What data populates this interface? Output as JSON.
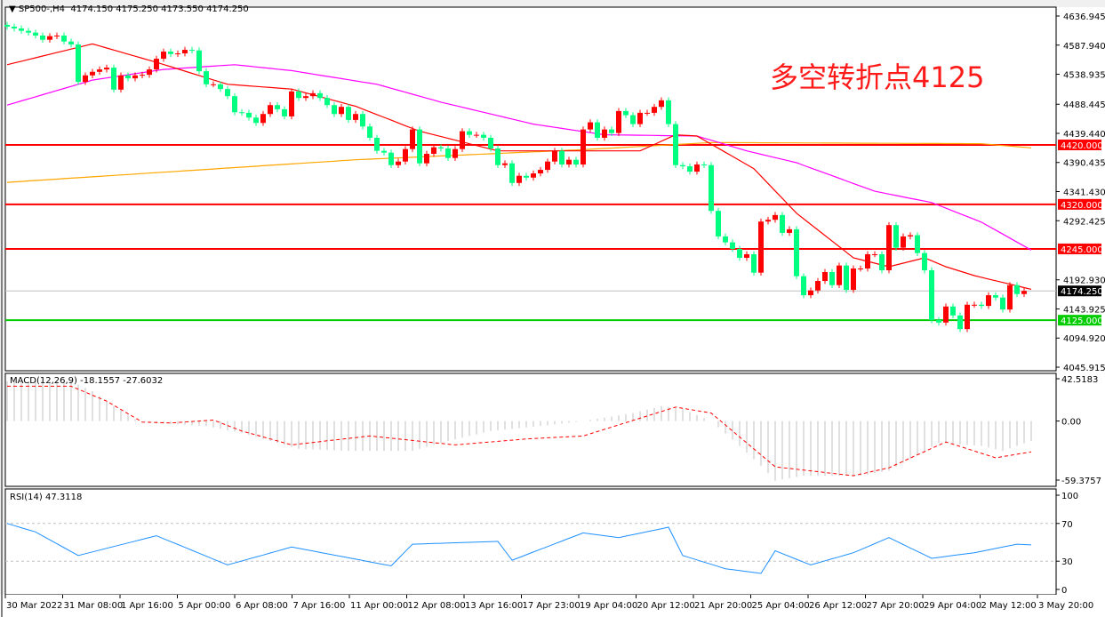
{
  "header": {
    "symbol": "SP500-,H4",
    "values": "4174.150 4175.250 4173.550 4174.250"
  },
  "annotation": "多空转折点4125",
  "colors": {
    "bull": "#ff0000",
    "bear": "#00ff80",
    "ma_fast": "#ff0000",
    "ma_mid": "#ff00ff",
    "ma_slow": "#ffa500",
    "resistance": "#ff0000",
    "support": "#00cc00",
    "current": "#c0c0c0",
    "macd_hist": "#c0c0c0",
    "macd_signal": "#ff0000",
    "rsi": "#1e90ff"
  },
  "chart_data": [
    {
      "type": "candlestick",
      "title": "SP500-,H4",
      "note_colors": "red = rising candle, green = falling candle",
      "ylim": [
        4045.915,
        4636.945
      ],
      "y_ticks": [
        "4636.945",
        "4587.940",
        "4538.935",
        "4488.445",
        "4439.440",
        "4390.435",
        "4341.430",
        "4292.425",
        "4192.930",
        "4143.925",
        "4094.920",
        "4045.915"
      ],
      "x_ticks": [
        "30 Mar 2022",
        "31 Mar 08:00",
        "1 Apr 16:00",
        "5 Apr 00:00",
        "6 Apr 08:00",
        "7 Apr 16:00",
        "11 Apr 00:00",
        "12 Apr 08:00",
        "13 Apr 16:00",
        "17 Apr 23:00",
        "19 Apr 04:00",
        "20 Apr 12:00",
        "21 Apr 20:00",
        "25 Apr 04:00",
        "26 Apr 12:00",
        "27 Apr 20:00",
        "29 Apr 04:00",
        "2 May 12:00",
        "3 May 20:00"
      ],
      "first_open": 4622,
      "close": [
        4619,
        4616,
        4612,
        4609,
        4604,
        4597,
        4603,
        4604,
        4594,
        4589,
        4526,
        4537,
        4543,
        4547,
        4550,
        4513,
        4537,
        4532,
        4537,
        4538,
        4547,
        4565,
        4577,
        4573,
        4574,
        4580,
        4579,
        4544,
        4522,
        4522,
        4514,
        4502,
        4475,
        4474,
        4466,
        4457,
        4472,
        4487,
        4480,
        4468,
        4510,
        4499,
        4502,
        4507,
        4499,
        4487,
        4472,
        4484,
        4462,
        4472,
        4451,
        4432,
        4410,
        4407,
        4386,
        4392,
        4413,
        4446,
        4389,
        4405,
        4416,
        4414,
        4398,
        4413,
        4443,
        4437,
        4437,
        4432,
        4414,
        4386,
        4389,
        4356,
        4368,
        4365,
        4372,
        4378,
        4392,
        4410,
        4387,
        4395,
        4387,
        4446,
        4458,
        4432,
        4446,
        4440,
        4477,
        4470,
        4455,
        4474,
        4474,
        4484,
        4495,
        4455,
        4386,
        4384,
        4375,
        4387,
        4386,
        4309,
        4266,
        4256,
        4245,
        4230,
        4236,
        4205,
        4291,
        4294,
        4302,
        4272,
        4278,
        4199,
        4167,
        4175,
        4191,
        4206,
        4184,
        4217,
        4176,
        4212,
        4212,
        4236,
        4236,
        4209,
        4285,
        4247,
        4266,
        4268,
        4238,
        4209,
        4125,
        4121,
        4148,
        4133,
        4110,
        4151,
        4151,
        4149,
        4167,
        4163,
        4143,
        4184,
        4169,
        4174.25
      ],
      "moving_averages": [
        {
          "points": [
            [
              0,
              4555
            ],
            [
              12,
              4590
            ],
            [
              21,
              4559
            ],
            [
              31,
              4522
            ],
            [
              40,
              4514
            ],
            [
              49,
              4485
            ],
            [
              58,
              4443
            ],
            [
              69,
              4410
            ],
            [
              77,
              4410
            ],
            [
              89,
              4410
            ],
            [
              94,
              4437
            ],
            [
              97,
              4435
            ],
            [
              105,
              4380
            ],
            [
              111,
              4305
            ],
            [
              119,
              4230
            ],
            [
              124,
              4215
            ],
            [
              129,
              4230
            ],
            [
              132,
              4215
            ],
            [
              136,
              4200
            ],
            [
              144,
              4177
            ]
          ]
        },
        {
          "points": [
            [
              0,
              4487
            ],
            [
              12,
              4529
            ],
            [
              22,
              4547
            ],
            [
              32,
              4555
            ],
            [
              40,
              4545
            ],
            [
              52,
              4522
            ],
            [
              61,
              4492
            ],
            [
              74,
              4455
            ],
            [
              84,
              4437
            ],
            [
              97,
              4435
            ],
            [
              104,
              4410
            ],
            [
              111,
              4390
            ],
            [
              122,
              4342
            ],
            [
              130,
              4323
            ],
            [
              137,
              4290
            ],
            [
              144,
              4243
            ]
          ]
        },
        {
          "points": [
            [
              0,
              4357
            ],
            [
              49,
              4395
            ],
            [
              81,
              4412
            ],
            [
              99,
              4424
            ],
            [
              137,
              4422
            ],
            [
              144,
              4415
            ]
          ]
        }
      ],
      "levels": [
        {
          "price": 4420,
          "label": "4420.000",
          "kind": "resistance"
        },
        {
          "price": 4320,
          "label": "4320.000",
          "kind": "resistance"
        },
        {
          "price": 4245,
          "label": "4245.000",
          "kind": "resistance"
        },
        {
          "price": 4125,
          "label": "4125.000",
          "kind": "support"
        }
      ],
      "current_price": {
        "price": 4174.25,
        "label": "4174.250"
      }
    },
    {
      "type": "bar",
      "title": "MACD(12,26,9) -18.1557 -27.6032",
      "ylim": [
        -59.3757,
        42.5183
      ],
      "y_ticks": [
        "42.5183",
        "0.00",
        "-59.3757"
      ],
      "histogram_points": [
        [
          0,
          40
        ],
        [
          9,
          40
        ],
        [
          12,
          30
        ],
        [
          15,
          15
        ],
        [
          18,
          2
        ],
        [
          20,
          -2
        ],
        [
          28,
          -5
        ],
        [
          33,
          -12
        ],
        [
          37,
          -20
        ],
        [
          41,
          -28
        ],
        [
          48,
          -30
        ],
        [
          57,
          -30
        ],
        [
          62,
          -20
        ],
        [
          68,
          -10
        ],
        [
          75,
          -5
        ],
        [
          81,
          0
        ],
        [
          88,
          8
        ],
        [
          92,
          15
        ],
        [
          95,
          12
        ],
        [
          99,
          0
        ],
        [
          103,
          -25
        ],
        [
          106,
          -45
        ],
        [
          108,
          -60
        ],
        [
          112,
          -55
        ],
        [
          120,
          -55
        ],
        [
          124,
          -50
        ],
        [
          131,
          -22
        ],
        [
          137,
          -25
        ],
        [
          140,
          -30
        ],
        [
          144,
          -20
        ]
      ],
      "signal_points": [
        [
          0,
          35
        ],
        [
          9,
          35
        ],
        [
          14,
          20
        ],
        [
          19,
          -1
        ],
        [
          23,
          -2
        ],
        [
          29,
          1
        ],
        [
          33,
          -10
        ],
        [
          40,
          -24
        ],
        [
          51,
          -15
        ],
        [
          63,
          -24
        ],
        [
          73,
          -18
        ],
        [
          81,
          -15
        ],
        [
          94,
          14
        ],
        [
          99,
          8
        ],
        [
          108,
          -46
        ],
        [
          119,
          -55
        ],
        [
          124,
          -47
        ],
        [
          132,
          -21
        ],
        [
          139,
          -37
        ],
        [
          144,
          -31
        ]
      ]
    },
    {
      "type": "line",
      "title": "RSI(14) 47.3118",
      "ylim": [
        0,
        100
      ],
      "y_ticks": [
        "100",
        "70",
        "30",
        "0"
      ],
      "levels": [
        70,
        30
      ],
      "points": [
        [
          0,
          70
        ],
        [
          4,
          61
        ],
        [
          10,
          36
        ],
        [
          21,
          57
        ],
        [
          31,
          26
        ],
        [
          40,
          45
        ],
        [
          54,
          25
        ],
        [
          57,
          48
        ],
        [
          69,
          51
        ],
        [
          71,
          31
        ],
        [
          81,
          60
        ],
        [
          86,
          55
        ],
        [
          93,
          66
        ],
        [
          95,
          36
        ],
        [
          101,
          22
        ],
        [
          106,
          17
        ],
        [
          108,
          41
        ],
        [
          113,
          26
        ],
        [
          119,
          39
        ],
        [
          124,
          55
        ],
        [
          130,
          33
        ],
        [
          136,
          39
        ],
        [
          142,
          48
        ],
        [
          144,
          47.3
        ]
      ]
    }
  ]
}
